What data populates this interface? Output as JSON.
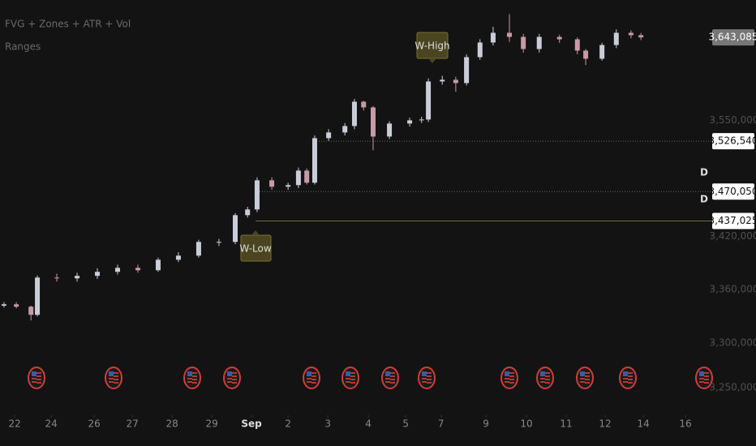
{
  "chart_data": {
    "type": "candlestick",
    "indicator_titles": [
      "FVG + Zones + ATR + Vol",
      "Ranges"
    ],
    "up_color": "#c9cdd8",
    "down_color": "#c79aa5",
    "x": [
      -0.27,
      0.04,
      0.41,
      0.57,
      1.06,
      1.57,
      2.08,
      2.59,
      3.1,
      3.61,
      4.12,
      4.63,
      5.14,
      5.55,
      5.86,
      6.1,
      6.47,
      6.88,
      7.14,
      7.35,
      7.55,
      7.9,
      8.31,
      8.55,
      8.78,
      9.02,
      9.43,
      9.94,
      10.24,
      10.41,
      10.76,
      11.1,
      11.37,
      11.71,
      12.04,
      12.45,
      12.8,
      13.2,
      13.71,
      14.16,
      14.37,
      14.78,
      15.14,
      15.51,
      15.76
    ],
    "open": [
      3342000,
      3343600,
      3340900,
      3331800,
      3373600,
      3372700,
      3375500,
      3380000,
      3384500,
      3381800,
      3393600,
      3398200,
      3413600,
      3413600,
      3443600,
      3450000,
      3482700,
      3475500,
      3477300,
      3493600,
      3480000,
      3530000,
      3536400,
      3543600,
      3570900,
      3564500,
      3531800,
      3546400,
      3550000,
      3550900,
      3593600,
      3595500,
      3591800,
      3620900,
      3637300,
      3648200,
      3643600,
      3630000,
      3643600,
      3640900,
      3628200,
      3619100,
      3634500,
      3648200,
      3645500
    ],
    "high": [
      3346000,
      3346000,
      3342000,
      3376000,
      3378000,
      3379000,
      3384000,
      3388000,
      3388000,
      3396000,
      3402000,
      3416000,
      3417000,
      3446000,
      3453000,
      3486000,
      3486000,
      3480000,
      3497000,
      3496000,
      3533000,
      3540000,
      3547000,
      3574000,
      3572000,
      3566000,
      3549000,
      3553000,
      3554000,
      3597000,
      3600000,
      3599000,
      3624000,
      3641000,
      3655000,
      3669100,
      3647000,
      3647000,
      3646000,
      3643000,
      3630000,
      3637000,
      3652000,
      3651000,
      3648000
    ],
    "low": [
      3340000,
      3339000,
      3325500,
      3330000,
      3369000,
      3369000,
      3372000,
      3377000,
      3379000,
      3380000,
      3391000,
      3396000,
      3409000,
      3411000,
      3441000,
      3447000,
      3472000,
      3472000,
      3474000,
      3478000,
      3478000,
      3527000,
      3533000,
      3540000,
      3561000,
      3516400,
      3529000,
      3543000,
      3547000,
      3548000,
      3590000,
      3582000,
      3589000,
      3618000,
      3634000,
      3638000,
      3626000,
      3626000,
      3637000,
      3624000,
      3612000,
      3617000,
      3631000,
      3642000,
      3640000
    ],
    "close": [
      3343600,
      3340900,
      3331800,
      3373600,
      3372700,
      3375500,
      3380000,
      3384500,
      3381800,
      3393600,
      3398200,
      3413600,
      3413600,
      3443600,
      3450000,
      3482700,
      3475500,
      3477300,
      3493600,
      3480000,
      3530000,
      3536400,
      3543600,
      3570900,
      3564500,
      3531800,
      3546400,
      3550000,
      3550900,
      3593600,
      3595500,
      3591800,
      3620900,
      3637300,
      3648200,
      3643600,
      3630000,
      3643600,
      3640900,
      3628200,
      3619100,
      3634500,
      3648200,
      3645500,
      3643085
    ],
    "xlim": [
      -0.37,
      17.39
    ],
    "xticks": [
      {
        "value": 0,
        "label": "22"
      },
      {
        "value": 0.92,
        "label": "24"
      },
      {
        "value": 2.0,
        "label": "26"
      },
      {
        "value": 2.96,
        "label": "27"
      },
      {
        "value": 3.96,
        "label": "28"
      },
      {
        "value": 4.96,
        "label": "29"
      },
      {
        "value": 5.96,
        "label": "Sep"
      },
      {
        "value": 6.88,
        "label": "2"
      },
      {
        "value": 7.88,
        "label": "3"
      },
      {
        "value": 8.9,
        "label": "4"
      },
      {
        "value": 9.84,
        "label": "5"
      },
      {
        "value": 10.73,
        "label": "7"
      },
      {
        "value": 11.86,
        "label": "9"
      },
      {
        "value": 12.88,
        "label": "10"
      },
      {
        "value": 13.88,
        "label": "11"
      },
      {
        "value": 14.86,
        "label": "12"
      },
      {
        "value": 15.82,
        "label": "14"
      },
      {
        "value": 16.88,
        "label": "16"
      }
    ],
    "ylim": [
      3221000,
      3685000
    ],
    "yticks": [
      {
        "value": 3250000,
        "label": "3,250,000"
      },
      {
        "value": 3300000,
        "label": "3,300,000"
      },
      {
        "value": 3360000,
        "label": "3,360,000"
      },
      {
        "value": 3420000,
        "label": "3,420,000"
      },
      {
        "value": 3550000,
        "label": "3,550,000"
      }
    ],
    "last_price": {
      "value": 3643085,
      "label": "3,643,085"
    },
    "levels": [
      {
        "value": 3526540,
        "label": "3,526,540"
      },
      {
        "value": 3470050,
        "label": "3,470,050"
      },
      {
        "value": 3437025,
        "label": "3,437,025"
      }
    ],
    "level_markers": [
      "D",
      "D"
    ],
    "annotations": [
      "W-High",
      "W-Low"
    ]
  }
}
